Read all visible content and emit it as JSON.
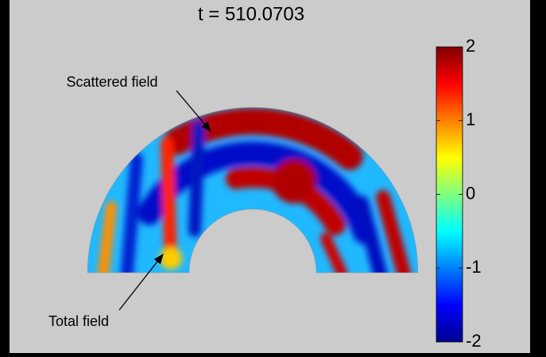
{
  "chart_data": {
    "type": "field",
    "title": "t = 510.0703",
    "annotations": [
      "Scattered field",
      "Total field"
    ],
    "colorbar": {
      "ylim": [
        -2,
        2
      ],
      "yticks": [
        -2,
        -1,
        0,
        1,
        2
      ]
    }
  }
}
